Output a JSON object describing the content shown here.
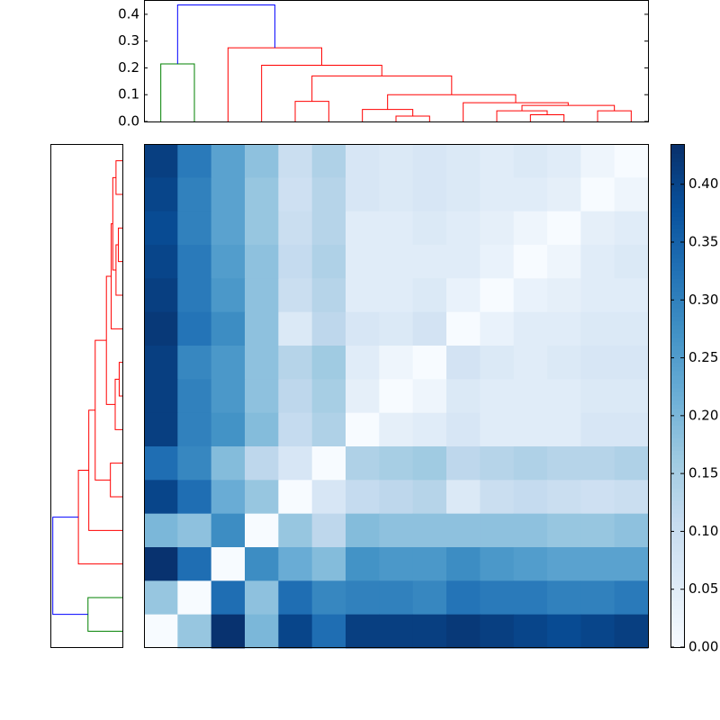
{
  "chart_data": {
    "type": "heatmap",
    "colormap": "Blues",
    "clim": [
      0,
      0.434
    ],
    "cbar_ticks": [
      {
        "value": 0,
        "label": "0.00"
      },
      {
        "value": 0.05,
        "label": "0.05"
      },
      {
        "value": 0.1,
        "label": "0.10"
      },
      {
        "value": 0.15,
        "label": "0.15"
      },
      {
        "value": 0.2,
        "label": "0.20"
      },
      {
        "value": 0.25,
        "label": "0.25"
      },
      {
        "value": 0.3,
        "label": "0.30"
      },
      {
        "value": 0.35,
        "label": "0.35"
      },
      {
        "value": 0.4,
        "label": "0.40"
      }
    ],
    "values": [
      [
        0.41,
        0.31,
        0.24,
        0.18,
        0.1,
        0.14,
        0.07,
        0.06,
        0.07,
        0.06,
        0.05,
        0.06,
        0.05,
        0.02,
        0
      ],
      [
        0.4,
        0.3,
        0.24,
        0.17,
        0.09,
        0.13,
        0.07,
        0.06,
        0.07,
        0.06,
        0.05,
        0.05,
        0.04,
        0,
        0.02
      ],
      [
        0.39,
        0.3,
        0.24,
        0.17,
        0.1,
        0.13,
        0.05,
        0.05,
        0.06,
        0.05,
        0.04,
        0.02,
        0,
        0.04,
        0.05
      ],
      [
        0.4,
        0.31,
        0.25,
        0.18,
        0.11,
        0.14,
        0.05,
        0.05,
        0.05,
        0.05,
        0.03,
        0,
        0.02,
        0.05,
        0.06
      ],
      [
        0.41,
        0.31,
        0.26,
        0.18,
        0.1,
        0.13,
        0.05,
        0.05,
        0.06,
        0.03,
        0,
        0.03,
        0.04,
        0.05,
        0.05
      ],
      [
        0.42,
        0.32,
        0.28,
        0.18,
        0.06,
        0.12,
        0.07,
        0.06,
        0.08,
        0,
        0.03,
        0.05,
        0.05,
        0.06,
        0.06
      ],
      [
        0.41,
        0.29,
        0.26,
        0.18,
        0.13,
        0.16,
        0.05,
        0.02,
        0,
        0.08,
        0.06,
        0.05,
        0.06,
        0.07,
        0.07
      ],
      [
        0.41,
        0.3,
        0.26,
        0.18,
        0.12,
        0.15,
        0.04,
        0,
        0.02,
        0.06,
        0.05,
        0.05,
        0.05,
        0.06,
        0.06
      ],
      [
        0.41,
        0.3,
        0.27,
        0.19,
        0.11,
        0.14,
        0,
        0.04,
        0.05,
        0.07,
        0.05,
        0.05,
        0.05,
        0.07,
        0.07
      ],
      [
        0.33,
        0.29,
        0.19,
        0.12,
        0.07,
        0,
        0.14,
        0.15,
        0.16,
        0.12,
        0.13,
        0.14,
        0.13,
        0.13,
        0.14
      ],
      [
        0.4,
        0.33,
        0.22,
        0.17,
        0,
        0.07,
        0.11,
        0.12,
        0.13,
        0.06,
        0.1,
        0.11,
        0.1,
        0.09,
        0.1
      ],
      [
        0.2,
        0.18,
        0.28,
        0,
        0.17,
        0.12,
        0.19,
        0.18,
        0.18,
        0.18,
        0.18,
        0.18,
        0.17,
        0.17,
        0.18
      ],
      [
        0.43,
        0.33,
        0,
        0.28,
        0.22,
        0.19,
        0.27,
        0.26,
        0.26,
        0.28,
        0.26,
        0.25,
        0.24,
        0.24,
        0.24
      ],
      [
        0.17,
        0,
        0.33,
        0.18,
        0.33,
        0.29,
        0.3,
        0.3,
        0.29,
        0.32,
        0.31,
        0.31,
        0.3,
        0.3,
        0.31
      ],
      [
        0,
        0.17,
        0.43,
        0.2,
        0.4,
        0.33,
        0.41,
        0.41,
        0.41,
        0.42,
        0.41,
        0.4,
        0.39,
        0.4,
        0.41
      ]
    ],
    "dendrogram": {
      "ylim": [
        0,
        0.45
      ],
      "yticks": [
        {
          "value": 0,
          "label": "0.0"
        },
        {
          "value": 0.1,
          "label": "0.1"
        },
        {
          "value": 0.2,
          "label": "0.2"
        },
        {
          "value": 0.3,
          "label": "0.3"
        },
        {
          "value": 0.4,
          "label": "0.4"
        }
      ],
      "links": [
        {
          "children": [
            7,
            8
          ],
          "height": 0.02,
          "color": "#ff0000"
        },
        {
          "children": [
            11,
            12
          ],
          "height": 0.025,
          "color": "#ff0000"
        },
        {
          "children": [
            10,
            16
          ],
          "height": 0.04,
          "color": "#ff0000"
        },
        {
          "children": [
            13,
            14
          ],
          "height": 0.04,
          "color": "#ff0000"
        },
        {
          "children": [
            6,
            15
          ],
          "height": 0.045,
          "color": "#ff0000"
        },
        {
          "children": [
            17,
            18
          ],
          "height": 0.06,
          "color": "#ff0000"
        },
        {
          "children": [
            9,
            20
          ],
          "height": 0.07,
          "color": "#ff0000"
        },
        {
          "children": [
            4,
            5
          ],
          "height": 0.075,
          "color": "#ff0000"
        },
        {
          "children": [
            19,
            21
          ],
          "height": 0.1,
          "color": "#ff0000"
        },
        {
          "children": [
            22,
            23
          ],
          "height": 0.17,
          "color": "#ff0000"
        },
        {
          "children": [
            3,
            24
          ],
          "height": 0.21,
          "color": "#ff0000"
        },
        {
          "children": [
            0,
            1
          ],
          "height": 0.215,
          "color": "#008000"
        },
        {
          "children": [
            2,
            25
          ],
          "height": 0.275,
          "color": "#ff0000"
        },
        {
          "children": [
            26,
            27
          ],
          "height": 0.435,
          "color": "#0000ff"
        }
      ]
    }
  }
}
